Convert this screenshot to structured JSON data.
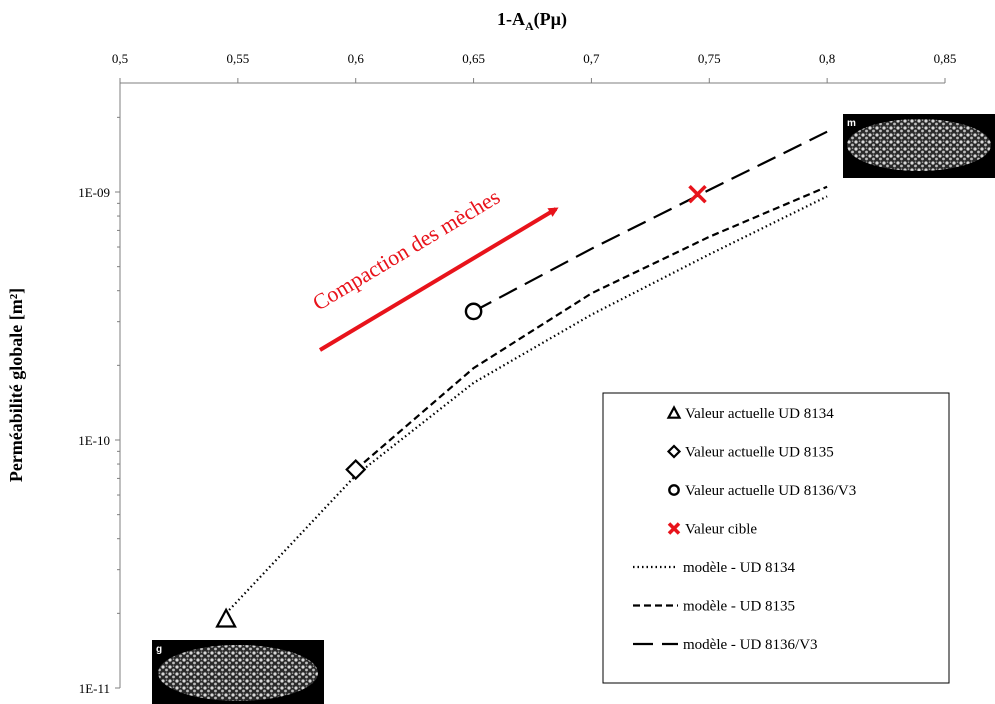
{
  "chart_data": {
    "type": "scatter",
    "title": "",
    "xlabel_prefix": "1-A",
    "xlabel_sub": "A",
    "xlabel_suffix": "(Pµ)",
    "ylabel": "Perméabilité globale [m²]",
    "xlim": [
      0.5,
      0.85
    ],
    "ylim": [
      1e-11,
      3e-09
    ],
    "y_scale": "log",
    "x_axis_position": "top",
    "x_ticks": [
      0.5,
      0.55,
      0.6,
      0.65,
      0.7,
      0.75,
      0.8,
      0.85
    ],
    "x_tick_labels": [
      "0,5",
      "0,55",
      "0,6",
      "0,65",
      "0,7",
      "0,75",
      "0,8",
      "0,85"
    ],
    "y_ticks": [
      1e-11,
      1e-10,
      1e-09
    ],
    "y_tick_labels": [
      "1E-11",
      "1E-10",
      "1E-09"
    ],
    "grid": false,
    "legend_position": "bottom-right",
    "series": [
      {
        "name": "Valeur actuelle UD 8134",
        "marker": "triangle",
        "color": "#000000",
        "points": [
          [
            0.545,
            1.9e-11
          ]
        ]
      },
      {
        "name": "Valeur actuelle UD 8135",
        "marker": "diamond",
        "color": "#000000",
        "points": [
          [
            0.6,
            7.6e-11
          ]
        ]
      },
      {
        "name": "Valeur actuelle UD 8136/V3",
        "marker": "circle",
        "color": "#000000",
        "points": [
          [
            0.65,
            3.3e-10
          ]
        ]
      },
      {
        "name": "Valeur cible",
        "marker": "x",
        "color": "#e8131b",
        "points": [
          [
            0.745,
            9.8e-10
          ]
        ]
      },
      {
        "name": "modèle - UD 8134",
        "line": "dotted",
        "color": "#000000",
        "points": [
          [
            0.545,
            2e-11
          ],
          [
            0.6,
            7.2e-11
          ],
          [
            0.65,
            1.7e-10
          ],
          [
            0.7,
            3.2e-10
          ],
          [
            0.75,
            5.6e-10
          ],
          [
            0.8,
            9.6e-10
          ]
        ]
      },
      {
        "name": "modèle - UD 8135",
        "line": "dashed",
        "color": "#000000",
        "points": [
          [
            0.6,
            7.6e-11
          ],
          [
            0.65,
            1.95e-10
          ],
          [
            0.7,
            3.9e-10
          ],
          [
            0.75,
            6.6e-10
          ],
          [
            0.8,
            1.05e-09
          ]
        ]
      },
      {
        "name": "modèle - UD 8136/V3",
        "line": "long-dashed",
        "color": "#000000",
        "points": [
          [
            0.65,
            3.3e-10
          ],
          [
            0.7,
            5.9e-10
          ],
          [
            0.75,
            1.02e-09
          ],
          [
            0.8,
            1.75e-09
          ]
        ]
      }
    ],
    "annotations": [
      {
        "text": "Compaction des mèches",
        "color": "#e8131b"
      }
    ],
    "inset_labels": [
      "g",
      "m"
    ]
  }
}
